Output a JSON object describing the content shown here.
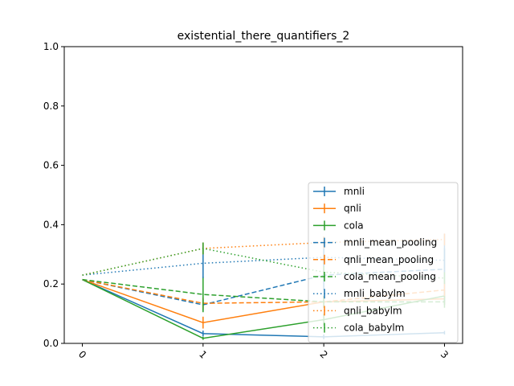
{
  "chart_data": {
    "type": "line",
    "title": "existential_there_quantifiers_2",
    "xlabel": "",
    "ylabel": "",
    "x": [
      0,
      1,
      2,
      3
    ],
    "x_tick_labels": [
      "0",
      "1",
      "2",
      "3"
    ],
    "x_tick_rotation": 45,
    "ylim": [
      0,
      1.0
    ],
    "y_ticks": [
      0.0,
      0.2,
      0.4,
      0.6,
      0.8,
      1.0
    ],
    "y_tick_labels": [
      "0.0",
      "0.2",
      "0.4",
      "0.6",
      "0.8",
      "1.0"
    ],
    "grid": false,
    "legend_position": "lower-right",
    "series": [
      {
        "name": "mnli",
        "color": "#1f77b4",
        "linestyle": "solid",
        "values": [
          0.215,
          0.033,
          0.022,
          0.036
        ],
        "errors": [
          0,
          0.01,
          0.008,
          0.006
        ]
      },
      {
        "name": "qnli",
        "color": "#ff7f0e",
        "linestyle": "solid",
        "values": [
          0.215,
          0.07,
          0.14,
          0.15
        ],
        "errors": [
          0,
          0.02,
          0.02,
          0.02
        ]
      },
      {
        "name": "cola",
        "color": "#2ca02c",
        "linestyle": "solid",
        "values": [
          0.215,
          0.017,
          0.08,
          0.16
        ],
        "errors": [
          0,
          0.005,
          0.02,
          0.02
        ]
      },
      {
        "name": "mnli_mean_pooling",
        "color": "#1f77b4",
        "linestyle": "dashed",
        "values": [
          0.215,
          0.13,
          0.23,
          0.25
        ],
        "errors": [
          0,
          0.02,
          0.05,
          0.12
        ]
      },
      {
        "name": "qnli_mean_pooling",
        "color": "#ff7f0e",
        "linestyle": "dashed",
        "values": [
          0.215,
          0.135,
          0.14,
          0.18
        ],
        "errors": [
          0,
          0.02,
          0.02,
          0.03
        ]
      },
      {
        "name": "cola_mean_pooling",
        "color": "#2ca02c",
        "linestyle": "dashed",
        "values": [
          0.215,
          0.165,
          0.14,
          0.14
        ],
        "errors": [
          0,
          0.06,
          0.02,
          0.02
        ]
      },
      {
        "name": "mnli_babylm",
        "color": "#1f77b4",
        "linestyle": "dotted",
        "values": [
          0.23,
          0.27,
          0.29,
          0.28
        ],
        "errors": [
          0,
          0.05,
          0.03,
          0.04
        ]
      },
      {
        "name": "qnli_babylm",
        "color": "#ff7f0e",
        "linestyle": "dotted",
        "values": [
          0.23,
          0.32,
          0.34,
          0.35
        ],
        "errors": [
          0,
          0.02,
          0.02,
          0.02
        ]
      },
      {
        "name": "cola_babylm",
        "color": "#2ca02c",
        "linestyle": "dotted",
        "values": [
          0.23,
          0.32,
          0.24,
          0.22
        ],
        "errors": [
          0,
          0.02,
          0.02,
          0.02
        ]
      }
    ]
  }
}
